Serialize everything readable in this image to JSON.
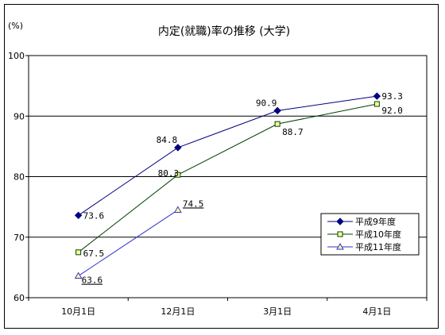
{
  "chart_data": {
    "type": "line",
    "title": "内定(就職)率の推移 (大学)",
    "ylabel": "(%)",
    "xlabel": "",
    "categories": [
      "10月1日",
      "12月1日",
      "3月1日",
      "4月1日"
    ],
    "ylim": [
      60,
      100
    ],
    "yticks": [
      60,
      70,
      80,
      90,
      100
    ],
    "grid": "horizontal",
    "legend_position": "right-middle",
    "series": [
      {
        "name": "平成9年度",
        "values": [
          73.6,
          84.8,
          90.9,
          93.3
        ],
        "labels": [
          "73.6",
          "84.8",
          "90.9",
          "93.3"
        ],
        "color": "#00007f",
        "marker": "diamond"
      },
      {
        "name": "平成10年度",
        "values": [
          67.5,
          80.3,
          88.7,
          92.0
        ],
        "labels": [
          "67.5",
          "80.3",
          "88.7",
          "92.0"
        ],
        "color": "#004000",
        "marker": "square"
      },
      {
        "name": "平成11年度",
        "values": [
          63.6,
          74.5,
          null,
          null
        ],
        "labels": [
          "63.6",
          "74.5",
          null,
          null
        ],
        "color": "#3333cc",
        "marker": "triangle"
      }
    ]
  }
}
